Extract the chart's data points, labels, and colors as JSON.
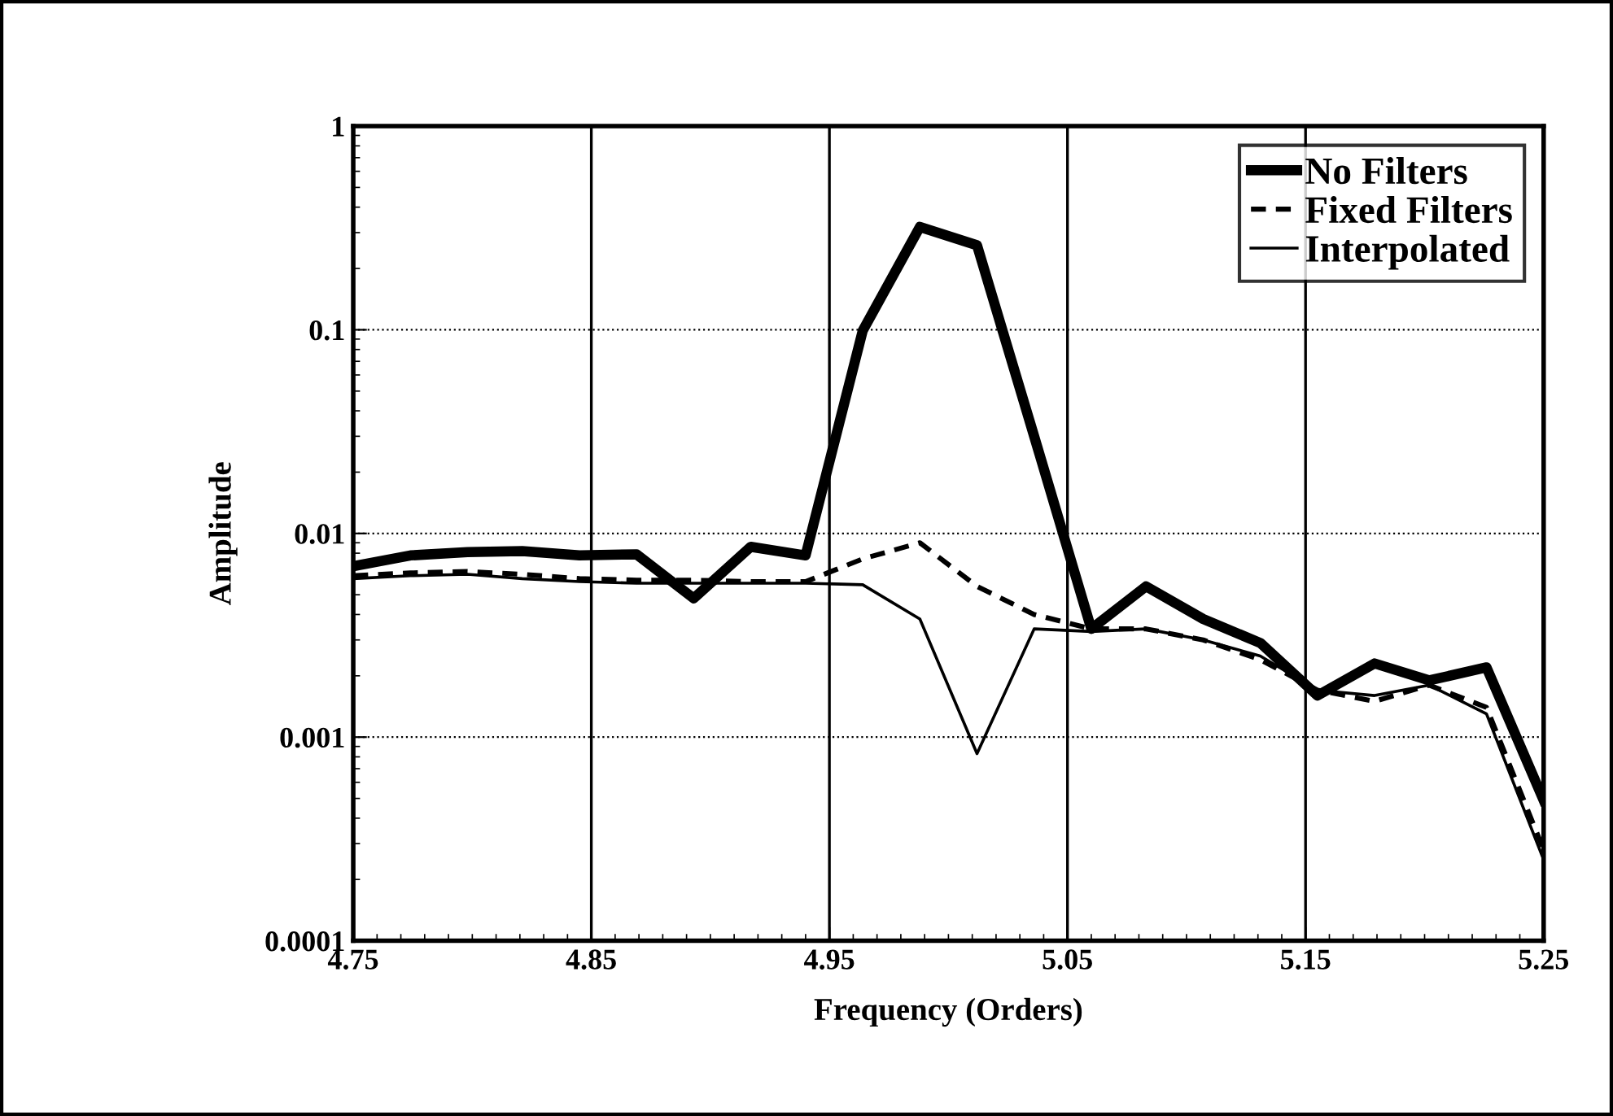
{
  "chart_data": {
    "type": "line",
    "xlabel": "Frequency (Orders)",
    "ylabel": "Amplitude",
    "x": [
      4.75,
      4.774,
      4.798,
      4.821,
      4.845,
      4.869,
      4.893,
      4.917,
      4.94,
      4.964,
      4.988,
      5.012,
      5.036,
      5.06,
      5.083,
      5.107,
      5.131,
      5.155,
      5.179,
      5.202,
      5.226,
      5.25
    ],
    "series": [
      {
        "name": "No Filters",
        "color": "#000000",
        "line_style": "solid",
        "values": [
          0.0069,
          0.0078,
          0.0081,
          0.0082,
          0.0078,
          0.0079,
          0.0048,
          0.0086,
          0.0078,
          0.099,
          0.32,
          0.26,
          0.03,
          0.0034,
          0.0055,
          0.0038,
          0.0029,
          0.0016,
          0.0023,
          0.0019,
          0.0022,
          0.00049
        ]
      },
      {
        "name": "Fixed Filters",
        "color": "#000000",
        "line_style": "dashed",
        "values": [
          0.0062,
          0.0064,
          0.0065,
          0.0063,
          0.006,
          0.0059,
          0.0059,
          0.0058,
          0.0058,
          0.0075,
          0.009,
          0.0055,
          0.004,
          0.0034,
          0.0034,
          0.003,
          0.0024,
          0.0017,
          0.0015,
          0.0018,
          0.0014,
          0.00028
        ]
      },
      {
        "name": "Interpolated",
        "color": "#000000",
        "line_style": "solid",
        "values": [
          0.006,
          0.0062,
          0.0063,
          0.006,
          0.0058,
          0.0057,
          0.0057,
          0.0057,
          0.0057,
          0.0056,
          0.0038,
          0.00083,
          0.0034,
          0.0033,
          0.0034,
          0.003,
          0.0025,
          0.0017,
          0.0016,
          0.0018,
          0.0013,
          0.00025
        ]
      }
    ],
    "xlim": [
      4.75,
      5.25
    ],
    "xticks": [
      4.75,
      4.85,
      4.95,
      5.05,
      5.15,
      5.25
    ],
    "log": "y",
    "ylim": [
      0.0001,
      1
    ],
    "yticks": [
      0.0001,
      0.001,
      0.01,
      0.1,
      1
    ],
    "grid": true,
    "legend": "top right",
    "marker": "none"
  }
}
